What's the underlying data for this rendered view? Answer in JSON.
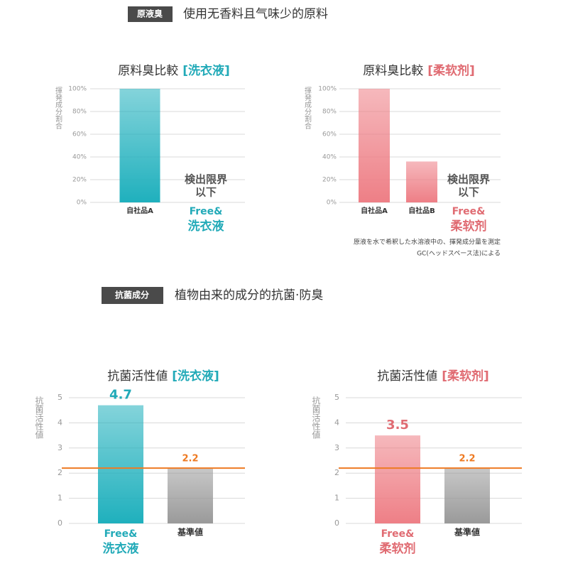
{
  "sections": [
    {
      "badge": "原液臭",
      "heading": "使用无香料且气味少的原料"
    },
    {
      "badge": "抗菌成分",
      "heading": "植物由来的成分的抗菌·防臭"
    }
  ],
  "chart_data": [
    {
      "type": "bar",
      "title": "原料臭比較",
      "title_tag": "[洗衣液]",
      "accent": "#22aab8",
      "ylabel": "揮発成分割合",
      "categories": [
        "自社品A",
        [
          "Free&",
          "洗衣液"
        ]
      ],
      "values": [
        100,
        0
      ],
      "value_labels": [
        null,
        [
          "検出限界",
          "以下"
        ]
      ],
      "colors": [
        "#1fb0bd",
        "#1fb0bd"
      ],
      "ylim": [
        0,
        100
      ],
      "yticks": [
        {
          "value": 0,
          "label": "0%"
        },
        {
          "value": 20,
          "label": "20%"
        },
        {
          "value": 40,
          "label": "40%"
        },
        {
          "value": 60,
          "label": "60%"
        },
        {
          "value": 80,
          "label": "80%"
        },
        {
          "value": 100,
          "label": "100%"
        }
      ],
      "grid": true
    },
    {
      "type": "bar",
      "title": "原料臭比較",
      "title_tag": "[柔软剂]",
      "accent": "#e06b72",
      "ylabel": "揮発成分割合",
      "categories": [
        "自社品A",
        "自社品B",
        [
          "Free&",
          "柔软剂"
        ]
      ],
      "values": [
        100,
        36,
        0
      ],
      "value_labels": [
        null,
        null,
        [
          "検出限界",
          "以下"
        ]
      ],
      "colors": [
        "#ee7f86",
        "#ee7f86",
        "#ee7f86"
      ],
      "ylim": [
        0,
        100
      ],
      "yticks": [
        {
          "value": 0,
          "label": "0%"
        },
        {
          "value": 20,
          "label": "20%"
        },
        {
          "value": 40,
          "label": "40%"
        },
        {
          "value": 60,
          "label": "60%"
        },
        {
          "value": 80,
          "label": "80%"
        },
        {
          "value": 100,
          "label": "100%"
        }
      ],
      "grid": true,
      "note": [
        "原液を水で希釈した水溶液中の、揮発成分量を測定",
        "GC(ヘッドスペース法)による"
      ]
    },
    {
      "type": "bar",
      "title": "抗菌活性値",
      "title_tag": "[洗衣液]",
      "accent": "#22aab8",
      "ylabel": "抗菌活性値",
      "categories": [
        [
          "Free&",
          "洗衣液"
        ],
        "基準値"
      ],
      "values": [
        4.7,
        2.2
      ],
      "colors": [
        "#1fb0bd",
        "#9a9a9a"
      ],
      "ylim": [
        0,
        5
      ],
      "yticks": [
        0,
        1,
        2,
        3,
        4,
        5
      ],
      "grid": true,
      "reference_line": 2.2,
      "reference_color": "#ee7a22"
    },
    {
      "type": "bar",
      "title": "抗菌活性値",
      "title_tag": "[柔软剂]",
      "accent": "#e06b72",
      "ylabel": "抗菌活性値",
      "categories": [
        [
          "Free&",
          "柔软剂"
        ],
        "基準値"
      ],
      "values": [
        3.5,
        2.2
      ],
      "colors": [
        "#ee7f86",
        "#9a9a9a"
      ],
      "ylim": [
        0,
        5
      ],
      "yticks": [
        0,
        1,
        2,
        3,
        4,
        5
      ],
      "grid": true,
      "reference_line": 2.2,
      "reference_color": "#ee7a22"
    }
  ]
}
